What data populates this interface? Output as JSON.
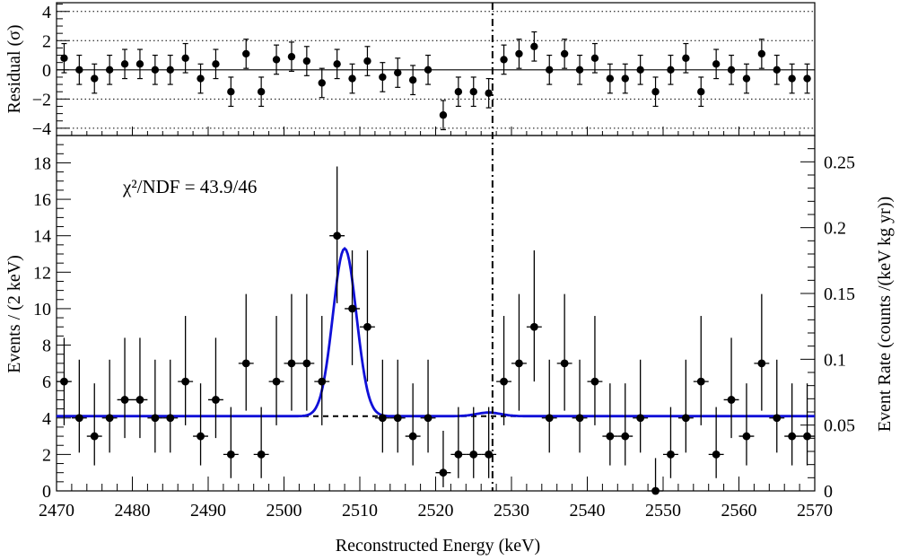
{
  "chart_data": [
    {
      "type": "scatter",
      "panel": "residual",
      "ylabel": "Residual (σ)",
      "ylim": [
        -4.5,
        4.6
      ],
      "yticks": [
        -4,
        -2,
        0,
        2,
        4
      ],
      "ytick_labels": [
        "−4",
        "−2",
        "0",
        "2",
        "4"
      ],
      "xlim": [
        2470,
        2570
      ],
      "reference_lines": [
        -4,
        -2,
        2,
        4
      ],
      "grid": "dotted horizontal lines at ±2σ and ±4σ",
      "marker_line_x": 2527.5,
      "x": [
        2471,
        2473,
        2475,
        2477,
        2479,
        2481,
        2483,
        2485,
        2487,
        2489,
        2491,
        2493,
        2495,
        2497,
        2499,
        2501,
        2503,
        2505,
        2507,
        2509,
        2511,
        2513,
        2515,
        2517,
        2519,
        2521,
        2523,
        2525,
        2527,
        2529,
        2531,
        2533,
        2535,
        2537,
        2539,
        2541,
        2543,
        2545,
        2547,
        2549,
        2551,
        2553,
        2555,
        2557,
        2559,
        2561,
        2563,
        2565,
        2567,
        2569
      ],
      "y": [
        0.8,
        0.0,
        -0.6,
        0.0,
        0.4,
        0.4,
        0.0,
        0.0,
        0.8,
        -0.6,
        0.4,
        -1.5,
        1.1,
        -1.5,
        0.7,
        0.9,
        0.6,
        -0.9,
        0.4,
        -0.6,
        0.6,
        -0.5,
        -0.2,
        -0.7,
        0.0,
        -3.1,
        -1.5,
        -1.5,
        -1.6,
        0.7,
        1.1,
        1.6,
        0.0,
        1.1,
        0.0,
        0.8,
        -0.6,
        -0.6,
        0.0,
        -1.5,
        0.0,
        0.8,
        -1.5,
        0.4,
        0.0,
        -0.6,
        1.1,
        0.0,
        -0.6,
        -0.6
      ],
      "yerr": [
        1,
        1,
        1,
        1,
        1,
        1,
        1,
        1,
        1,
        1,
        1,
        1,
        1,
        1,
        1,
        1,
        1,
        1,
        1,
        1,
        1,
        1,
        1,
        1,
        1,
        1,
        1,
        1,
        1,
        1,
        1,
        1,
        1,
        1,
        1,
        1,
        1,
        1,
        1,
        1,
        1,
        1,
        1,
        1,
        1,
        1,
        1,
        1,
        1,
        1
      ]
    },
    {
      "type": "scatter",
      "panel": "main",
      "xlabel": "Reconstructed Energy (keV)",
      "ylabel": "Events / (2 keV)",
      "y2label": "Event Rate (counts /(keV kg  yr))",
      "xlim": [
        2470,
        2570
      ],
      "xticks": [
        2470,
        2480,
        2490,
        2500,
        2510,
        2520,
        2530,
        2540,
        2550,
        2560,
        2570
      ],
      "ylim": [
        0,
        19.5
      ],
      "yticks": [
        0,
        2,
        4,
        6,
        8,
        10,
        12,
        14,
        16,
        18
      ],
      "y2lim": [
        0,
        0.27
      ],
      "y2ticks": [
        0,
        0.05,
        0.1,
        0.15,
        0.2,
        0.25
      ],
      "annotation": "χ²/NDF = 43.9/46",
      "background_level": 4.1,
      "fit": {
        "background": 4.1,
        "peak_center": 2508,
        "peak_amplitude": 9.2,
        "peak_sigma": 1.55,
        "secondary_center": 2527,
        "secondary_amplitude": 0.2
      },
      "marker_line_x": 2527.5,
      "colors": {
        "fit_line": "#1010d8",
        "data": "#000000",
        "background": "#000000"
      },
      "x": [
        2471,
        2473,
        2475,
        2477,
        2479,
        2481,
        2483,
        2485,
        2487,
        2489,
        2491,
        2493,
        2495,
        2497,
        2499,
        2501,
        2503,
        2505,
        2507,
        2509,
        2511,
        2513,
        2515,
        2517,
        2519,
        2521,
        2523,
        2525,
        2527,
        2529,
        2531,
        2533,
        2535,
        2537,
        2539,
        2541,
        2543,
        2545,
        2547,
        2549,
        2551,
        2553,
        2555,
        2557,
        2559,
        2561,
        2563,
        2565,
        2567,
        2569
      ],
      "y": [
        6,
        4,
        3,
        4,
        5,
        5,
        4,
        4,
        6,
        3,
        5,
        2,
        7,
        2,
        6,
        7,
        7,
        6,
        14,
        10,
        9,
        4,
        4,
        3,
        4,
        1,
        2,
        2,
        2,
        6,
        7,
        9,
        4,
        7,
        4,
        6,
        3,
        3,
        4,
        0,
        2,
        4,
        6,
        2,
        5,
        3,
        7,
        4,
        3,
        3
      ],
      "yerr": [
        [
          2.4,
          2.4
        ],
        [
          1.9,
          3.2
        ],
        [
          1.6,
          2.9
        ],
        [
          1.9,
          3.2
        ],
        [
          2.1,
          3.4
        ],
        [
          2.1,
          3.4
        ],
        [
          1.9,
          3.2
        ],
        [
          1.9,
          3.2
        ],
        [
          2.4,
          3.6
        ],
        [
          1.6,
          2.9
        ],
        [
          2.1,
          3.4
        ],
        [
          1.3,
          2.6
        ],
        [
          2.6,
          3.8
        ],
        [
          1.3,
          2.6
        ],
        [
          2.4,
          3.6
        ],
        [
          2.6,
          3.8
        ],
        [
          2.6,
          3.8
        ],
        [
          2.4,
          3.6
        ],
        [
          3.7,
          3.8
        ],
        [
          3.1,
          3.2
        ],
        [
          3.0,
          4.2
        ],
        [
          1.9,
          3.2
        ],
        [
          1.9,
          3.2
        ],
        [
          1.6,
          2.9
        ],
        [
          1.9,
          3.2
        ],
        [
          0.8,
          2.3
        ],
        [
          1.3,
          2.6
        ],
        [
          1.3,
          2.6
        ],
        [
          1.3,
          2.6
        ],
        [
          2.4,
          3.6
        ],
        [
          2.6,
          3.8
        ],
        [
          3.0,
          4.2
        ],
        [
          1.9,
          3.2
        ],
        [
          2.6,
          3.8
        ],
        [
          1.9,
          3.2
        ],
        [
          2.4,
          3.6
        ],
        [
          1.6,
          2.9
        ],
        [
          1.6,
          2.9
        ],
        [
          1.9,
          3.2
        ],
        [
          0,
          1.8
        ],
        [
          1.3,
          2.6
        ],
        [
          1.9,
          3.2
        ],
        [
          2.4,
          3.6
        ],
        [
          1.3,
          2.6
        ],
        [
          2.1,
          3.4
        ],
        [
          1.6,
          2.9
        ],
        [
          2.6,
          3.8
        ],
        [
          1.9,
          3.2
        ],
        [
          1.6,
          2.9
        ],
        [
          1.6,
          2.9
        ]
      ],
      "xerr": 1
    }
  ]
}
